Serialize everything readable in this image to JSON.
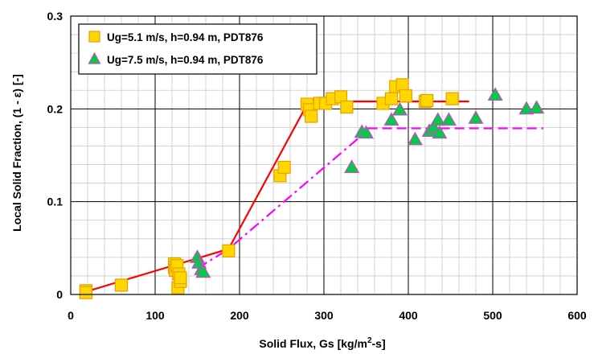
{
  "chart_data": {
    "type": "scatter",
    "title": "",
    "xlabel": "Solid Flux, Gs [kg/m²-s]",
    "xlabel_parts": {
      "prefix": "Solid Flux, Gs [kg/m",
      "sup": "2",
      "suffix": "-s]"
    },
    "ylabel": "Local Solid Fraction, (1 - ε) [-]",
    "xlim": [
      0,
      600
    ],
    "ylim": [
      0,
      0.3
    ],
    "x_ticks": [
      0,
      100,
      200,
      300,
      400,
      500,
      600
    ],
    "x_tick_labels": [
      "0",
      "100",
      "200",
      "300",
      "400",
      "500",
      "600"
    ],
    "y_ticks": [
      0,
      0.1,
      0.2,
      0.3
    ],
    "y_tick_labels": [
      "0",
      "0.1",
      "0.2",
      "0.3"
    ],
    "grid": true,
    "legend_position": "top-left",
    "series": [
      {
        "name": "Ug=5.1 m/s, h=0.94 m, PDT876",
        "marker": "square",
        "fill": "#FFD700",
        "stroke": "#E8A000",
        "points": [
          [
            18,
            0.004
          ],
          [
            18,
            0.002
          ],
          [
            60,
            0.01
          ],
          [
            123,
            0.033
          ],
          [
            123,
            0.029
          ],
          [
            124,
            0.026
          ],
          [
            126,
            0.031
          ],
          [
            127,
            0.007
          ],
          [
            128,
            0.022
          ],
          [
            130,
            0.014
          ],
          [
            130,
            0.018
          ],
          [
            187,
            0.047
          ],
          [
            248,
            0.128
          ],
          [
            253,
            0.137
          ],
          [
            280,
            0.205
          ],
          [
            283,
            0.199
          ],
          [
            285,
            0.192
          ],
          [
            295,
            0.206
          ],
          [
            302,
            0.206
          ],
          [
            310,
            0.211
          ],
          [
            320,
            0.213
          ],
          [
            327,
            0.202
          ],
          [
            370,
            0.206
          ],
          [
            380,
            0.211
          ],
          [
            385,
            0.224
          ],
          [
            393,
            0.226
          ],
          [
            397,
            0.214
          ],
          [
            420,
            0.208
          ],
          [
            422,
            0.209
          ],
          [
            452,
            0.211
          ]
        ]
      },
      {
        "name": "Ug=7.5 m/s, h=0.94 m, PDT876",
        "marker": "triangle",
        "fill": "#00CC44",
        "stroke": "#CC44CC",
        "points": [
          [
            150,
            0.04
          ],
          [
            152,
            0.034
          ],
          [
            155,
            0.027
          ],
          [
            157,
            0.024
          ],
          [
            333,
            0.137
          ],
          [
            345,
            0.175
          ],
          [
            350,
            0.174
          ],
          [
            380,
            0.188
          ],
          [
            390,
            0.199
          ],
          [
            408,
            0.167
          ],
          [
            425,
            0.176
          ],
          [
            430,
            0.18
          ],
          [
            435,
            0.188
          ],
          [
            437,
            0.174
          ],
          [
            448,
            0.188
          ],
          [
            480,
            0.19
          ],
          [
            503,
            0.215
          ],
          [
            540,
            0.2
          ],
          [
            552,
            0.201
          ]
        ]
      }
    ],
    "lines": [
      {
        "for_series": "Ug=5.1 m/s, h=0.94 m, PDT876",
        "style": "solid",
        "color": "#FF0000",
        "points": [
          [
            18,
            0.003
          ],
          [
            187,
            0.049
          ],
          [
            282,
            0.208
          ],
          [
            472,
            0.208
          ]
        ]
      },
      {
        "for_series": "Ug=7.5 m/s, h=0.94 m, PDT876",
        "style": "dash-dot",
        "color": "#FF00FF",
        "points": [
          [
            150,
            0.028
          ],
          [
            187,
            0.049
          ],
          [
            352,
            0.177
          ]
        ]
      },
      {
        "for_series": "Ug=7.5 m/s, h=0.94 m, PDT876",
        "style": "dashed",
        "color": "#FF00FF",
        "points": [
          [
            352,
            0.179
          ],
          [
            560,
            0.179
          ]
        ]
      }
    ]
  }
}
